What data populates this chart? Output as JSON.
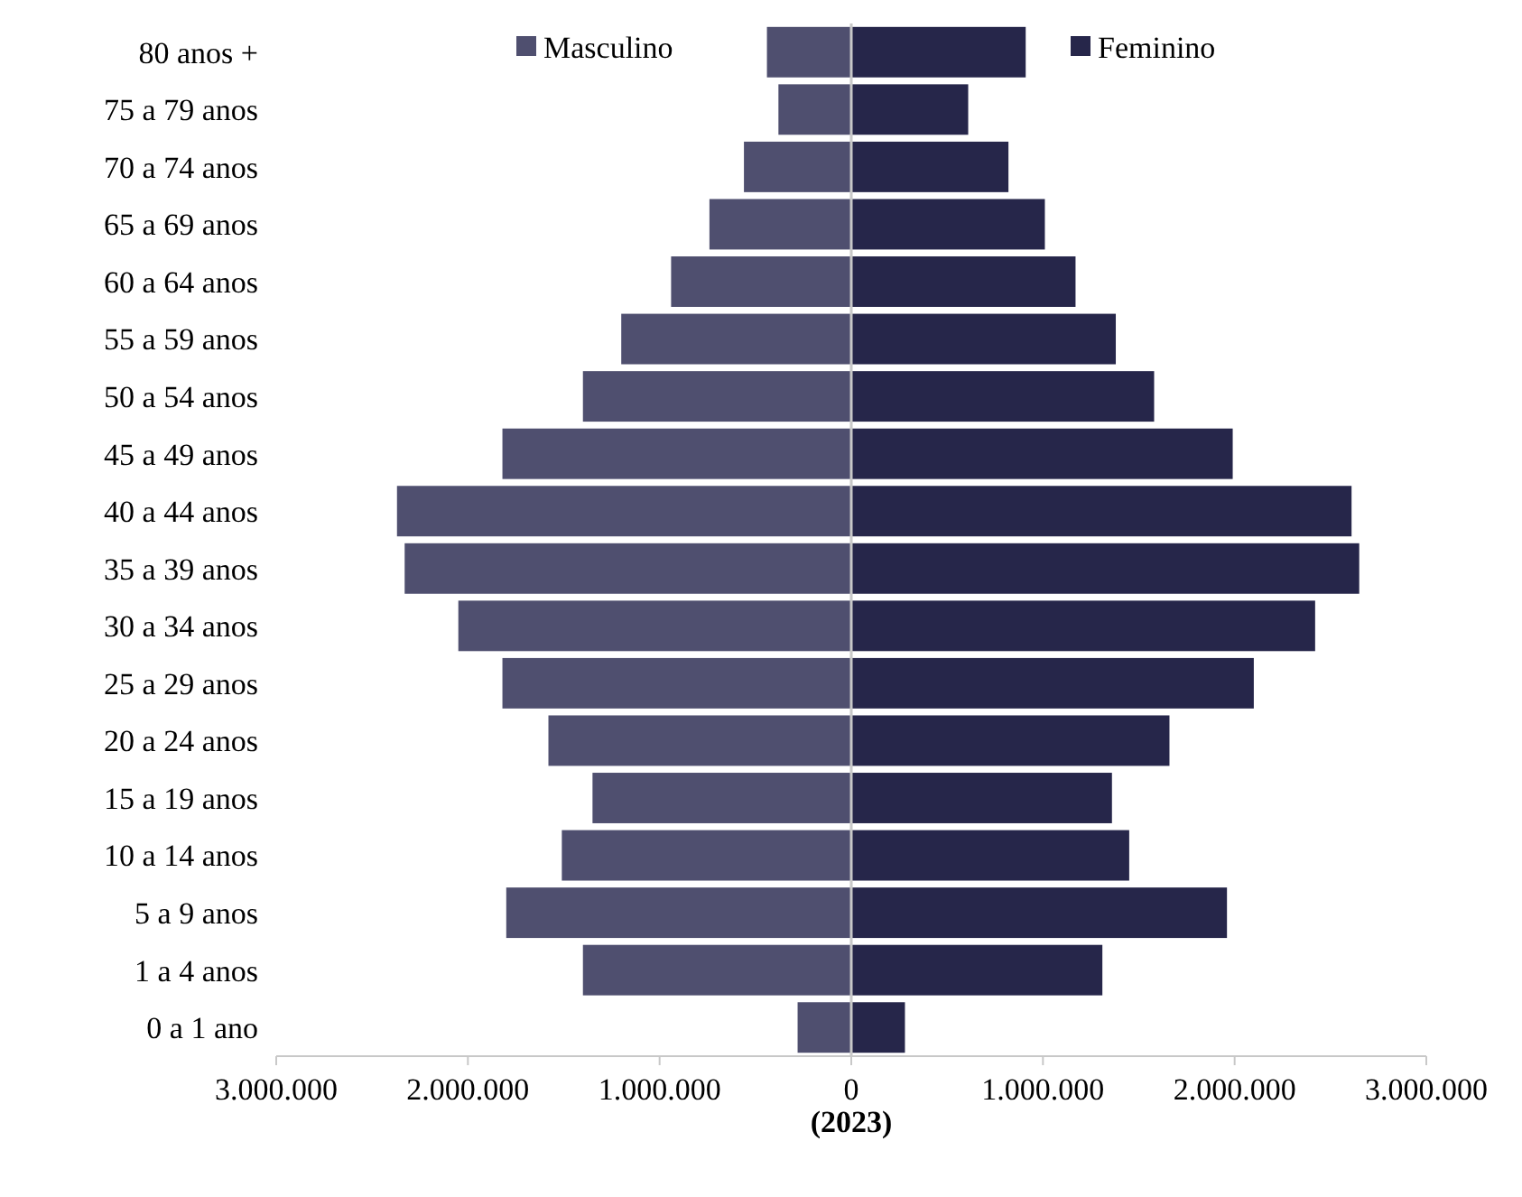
{
  "chart_data": {
    "type": "bar",
    "orientation": "horizontal",
    "stacked": true,
    "xlabel": "(2023)",
    "categories": [
      "80 anos +",
      "75 a 79 anos",
      "70 a 74 anos",
      "65 a 69 anos",
      "60 a 64 anos",
      "55 a 59 anos",
      "50 a 54 anos",
      "45 a 49 anos",
      "40 a 44 anos",
      "35 a 39 anos",
      "30 a 34 anos",
      "25 a 29 anos",
      "20 a 24 anos",
      "15 a 19 anos",
      "10 a 14 anos",
      "5 a 9 anos",
      "1 a 4 anos",
      "0 a 1 ano"
    ],
    "series": [
      {
        "name": "Masculino",
        "color": "#4f4f6f",
        "values": [
          -440000,
          -380000,
          -560000,
          -740000,
          -940000,
          -1200000,
          -1400000,
          -1820000,
          -2370000,
          -2330000,
          -2050000,
          -1820000,
          -1580000,
          -1350000,
          -1510000,
          -1800000,
          -1400000,
          -280000
        ]
      },
      {
        "name": "Feminino",
        "color": "#26264a",
        "values": [
          910000,
          610000,
          820000,
          1010000,
          1170000,
          1380000,
          1580000,
          1990000,
          2610000,
          2650000,
          2420000,
          2100000,
          1660000,
          1360000,
          1450000,
          1960000,
          1310000,
          280000
        ]
      }
    ],
    "xlim": [
      -3000000,
      3000000
    ],
    "xticks": [
      {
        "value": -3000000,
        "label": "3.000.000"
      },
      {
        "value": -2000000,
        "label": "2.000.000"
      },
      {
        "value": -1000000,
        "label": "1.000.000"
      },
      0,
      {
        "value": 1000000,
        "label": "1.000.000"
      },
      {
        "value": 2000000,
        "label": "2.000.000"
      },
      {
        "value": 3000000,
        "label": "3.000.000"
      }
    ],
    "legend": "top"
  }
}
